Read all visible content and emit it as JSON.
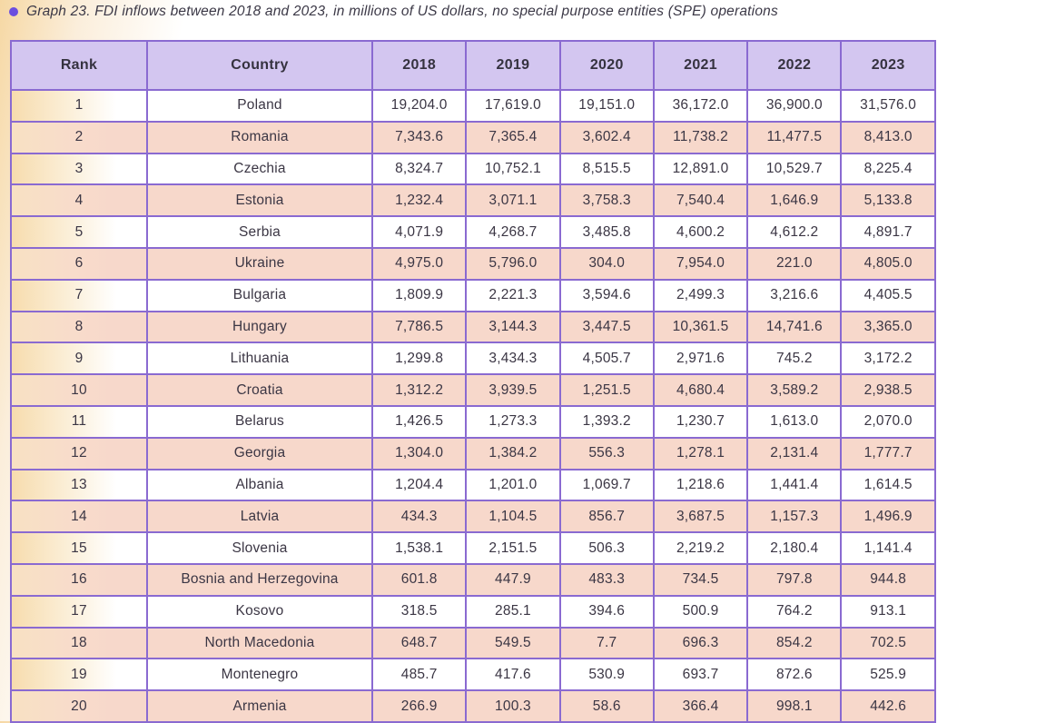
{
  "title": {
    "text": "Graph 23. FDI inflows between 2018 and 2023, in millions of US dollars, no special purpose entities (SPE) operations"
  },
  "colors": {
    "accent_purple_bullet": "#6b4ee0",
    "header_bg": "#d3c6f0",
    "table_border": "#8a6ad1",
    "row_pink": "#f7d8cb",
    "row_white": "#ffffff",
    "left_edge_gradient": "#f6d8a4",
    "rank_gradient_left": "#f7dcae",
    "text": "#3b3644"
  },
  "table": {
    "columns": [
      "Rank",
      "Country",
      "2018",
      "2019",
      "2020",
      "2021",
      "2022",
      "2023"
    ],
    "rows": [
      {
        "rank": "1",
        "country": "Poland",
        "values": [
          "19,204.0",
          "17,619.0",
          "19,151.0",
          "36,172.0",
          "36,900.0",
          "31,576.0"
        ]
      },
      {
        "rank": "2",
        "country": "Romania",
        "values": [
          "7,343.6",
          "7,365.4",
          "3,602.4",
          "11,738.2",
          "11,477.5",
          "8,413.0"
        ]
      },
      {
        "rank": "3",
        "country": "Czechia",
        "values": [
          "8,324.7",
          "10,752.1",
          "8,515.5",
          "12,891.0",
          "10,529.7",
          "8,225.4"
        ]
      },
      {
        "rank": "4",
        "country": "Estonia",
        "values": [
          "1,232.4",
          "3,071.1",
          "3,758.3",
          "7,540.4",
          "1,646.9",
          "5,133.8"
        ]
      },
      {
        "rank": "5",
        "country": "Serbia",
        "values": [
          "4,071.9",
          "4,268.7",
          "3,485.8",
          "4,600.2",
          "4,612.2",
          "4,891.7"
        ]
      },
      {
        "rank": "6",
        "country": "Ukraine",
        "values": [
          "4,975.0",
          "5,796.0",
          "304.0",
          "7,954.0",
          "221.0",
          "4,805.0"
        ]
      },
      {
        "rank": "7",
        "country": "Bulgaria",
        "values": [
          "1,809.9",
          "2,221.3",
          "3,594.6",
          "2,499.3",
          "3,216.6",
          "4,405.5"
        ]
      },
      {
        "rank": "8",
        "country": "Hungary",
        "values": [
          "7,786.5",
          "3,144.3",
          "3,447.5",
          "10,361.5",
          "14,741.6",
          "3,365.0"
        ]
      },
      {
        "rank": "9",
        "country": "Lithuania",
        "values": [
          "1,299.8",
          "3,434.3",
          "4,505.7",
          "2,971.6",
          "745.2",
          "3,172.2"
        ]
      },
      {
        "rank": "10",
        "country": "Croatia",
        "values": [
          "1,312.2",
          "3,939.5",
          "1,251.5",
          "4,680.4",
          "3,589.2",
          "2,938.5"
        ]
      },
      {
        "rank": "11",
        "country": "Belarus",
        "values": [
          "1,426.5",
          "1,273.3",
          "1,393.2",
          "1,230.7",
          "1,613.0",
          "2,070.0"
        ]
      },
      {
        "rank": "12",
        "country": "Georgia",
        "values": [
          "1,304.0",
          "1,384.2",
          "556.3",
          "1,278.1",
          "2,131.4",
          "1,777.7"
        ]
      },
      {
        "rank": "13",
        "country": "Albania",
        "values": [
          "1,204.4",
          "1,201.0",
          "1,069.7",
          "1,218.6",
          "1,441.4",
          "1,614.5"
        ]
      },
      {
        "rank": "14",
        "country": "Latvia",
        "values": [
          "434.3",
          "1,104.5",
          "856.7",
          "3,687.5",
          "1,157.3",
          "1,496.9"
        ]
      },
      {
        "rank": "15",
        "country": "Slovenia",
        "values": [
          "1,538.1",
          "2,151.5",
          "506.3",
          "2,219.2",
          "2,180.4",
          "1,141.4"
        ]
      },
      {
        "rank": "16",
        "country": "Bosnia and Herzegovina",
        "values": [
          "601.8",
          "447.9",
          "483.3",
          "734.5",
          "797.8",
          "944.8"
        ]
      },
      {
        "rank": "17",
        "country": "Kosovo",
        "values": [
          "318.5",
          "285.1",
          "394.6",
          "500.9",
          "764.2",
          "913.1"
        ]
      },
      {
        "rank": "18",
        "country": "North Macedonia",
        "values": [
          "648.7",
          "549.5",
          "7.7",
          "696.3",
          "854.2",
          "702.5"
        ]
      },
      {
        "rank": "19",
        "country": "Montenegro",
        "values": [
          "485.7",
          "417.6",
          "530.9",
          "693.7",
          "872.6",
          "525.9"
        ]
      },
      {
        "rank": "20",
        "country": "Armenia",
        "values": [
          "266.9",
          "100.3",
          "58.6",
          "366.4",
          "998.1",
          "442.6"
        ]
      }
    ]
  },
  "chart_data": {
    "type": "table",
    "title": "Graph 23. FDI inflows between 2018 and 2023, in millions of US dollars, no special purpose entities (SPE) operations",
    "categories": [
      "2018",
      "2019",
      "2020",
      "2021",
      "2022",
      "2023"
    ],
    "series": [
      {
        "name": "Poland",
        "rank": 1,
        "values": [
          19204.0,
          17619.0,
          19151.0,
          36172.0,
          36900.0,
          31576.0
        ]
      },
      {
        "name": "Romania",
        "rank": 2,
        "values": [
          7343.6,
          7365.4,
          3602.4,
          11738.2,
          11477.5,
          8413.0
        ]
      },
      {
        "name": "Czechia",
        "rank": 3,
        "values": [
          8324.7,
          10752.1,
          8515.5,
          12891.0,
          10529.7,
          8225.4
        ]
      },
      {
        "name": "Estonia",
        "rank": 4,
        "values": [
          1232.4,
          3071.1,
          3758.3,
          7540.4,
          1646.9,
          5133.8
        ]
      },
      {
        "name": "Serbia",
        "rank": 5,
        "values": [
          4071.9,
          4268.7,
          3485.8,
          4600.2,
          4612.2,
          4891.7
        ]
      },
      {
        "name": "Ukraine",
        "rank": 6,
        "values": [
          4975.0,
          5796.0,
          304.0,
          7954.0,
          221.0,
          4805.0
        ]
      },
      {
        "name": "Bulgaria",
        "rank": 7,
        "values": [
          1809.9,
          2221.3,
          3594.6,
          2499.3,
          3216.6,
          4405.5
        ]
      },
      {
        "name": "Hungary",
        "rank": 8,
        "values": [
          7786.5,
          3144.3,
          3447.5,
          10361.5,
          14741.6,
          3365.0
        ]
      },
      {
        "name": "Lithuania",
        "rank": 9,
        "values": [
          1299.8,
          3434.3,
          4505.7,
          2971.6,
          745.2,
          3172.2
        ]
      },
      {
        "name": "Croatia",
        "rank": 10,
        "values": [
          1312.2,
          3939.5,
          1251.5,
          4680.4,
          3589.2,
          2938.5
        ]
      },
      {
        "name": "Belarus",
        "rank": 11,
        "values": [
          1426.5,
          1273.3,
          1393.2,
          1230.7,
          1613.0,
          2070.0
        ]
      },
      {
        "name": "Georgia",
        "rank": 12,
        "values": [
          1304.0,
          1384.2,
          556.3,
          1278.1,
          2131.4,
          1777.7
        ]
      },
      {
        "name": "Albania",
        "rank": 13,
        "values": [
          1204.4,
          1201.0,
          1069.7,
          1218.6,
          1441.4,
          1614.5
        ]
      },
      {
        "name": "Latvia",
        "rank": 14,
        "values": [
          434.3,
          1104.5,
          856.7,
          3687.5,
          1157.3,
          1496.9
        ]
      },
      {
        "name": "Slovenia",
        "rank": 15,
        "values": [
          1538.1,
          2151.5,
          506.3,
          2219.2,
          2180.4,
          1141.4
        ]
      },
      {
        "name": "Bosnia and Herzegovina",
        "rank": 16,
        "values": [
          601.8,
          447.9,
          483.3,
          734.5,
          797.8,
          944.8
        ]
      },
      {
        "name": "Kosovo",
        "rank": 17,
        "values": [
          318.5,
          285.1,
          394.6,
          500.9,
          764.2,
          913.1
        ]
      },
      {
        "name": "North Macedonia",
        "rank": 18,
        "values": [
          648.7,
          549.5,
          7.7,
          696.3,
          854.2,
          702.5
        ]
      },
      {
        "name": "Montenegro",
        "rank": 19,
        "values": [
          485.7,
          417.6,
          530.9,
          693.7,
          872.6,
          525.9
        ]
      },
      {
        "name": "Armenia",
        "rank": 20,
        "values": [
          266.9,
          100.3,
          58.6,
          366.4,
          998.1,
          442.6
        ]
      }
    ],
    "units": "millions of US dollars",
    "notes": "no special purpose entities (SPE) operations"
  }
}
